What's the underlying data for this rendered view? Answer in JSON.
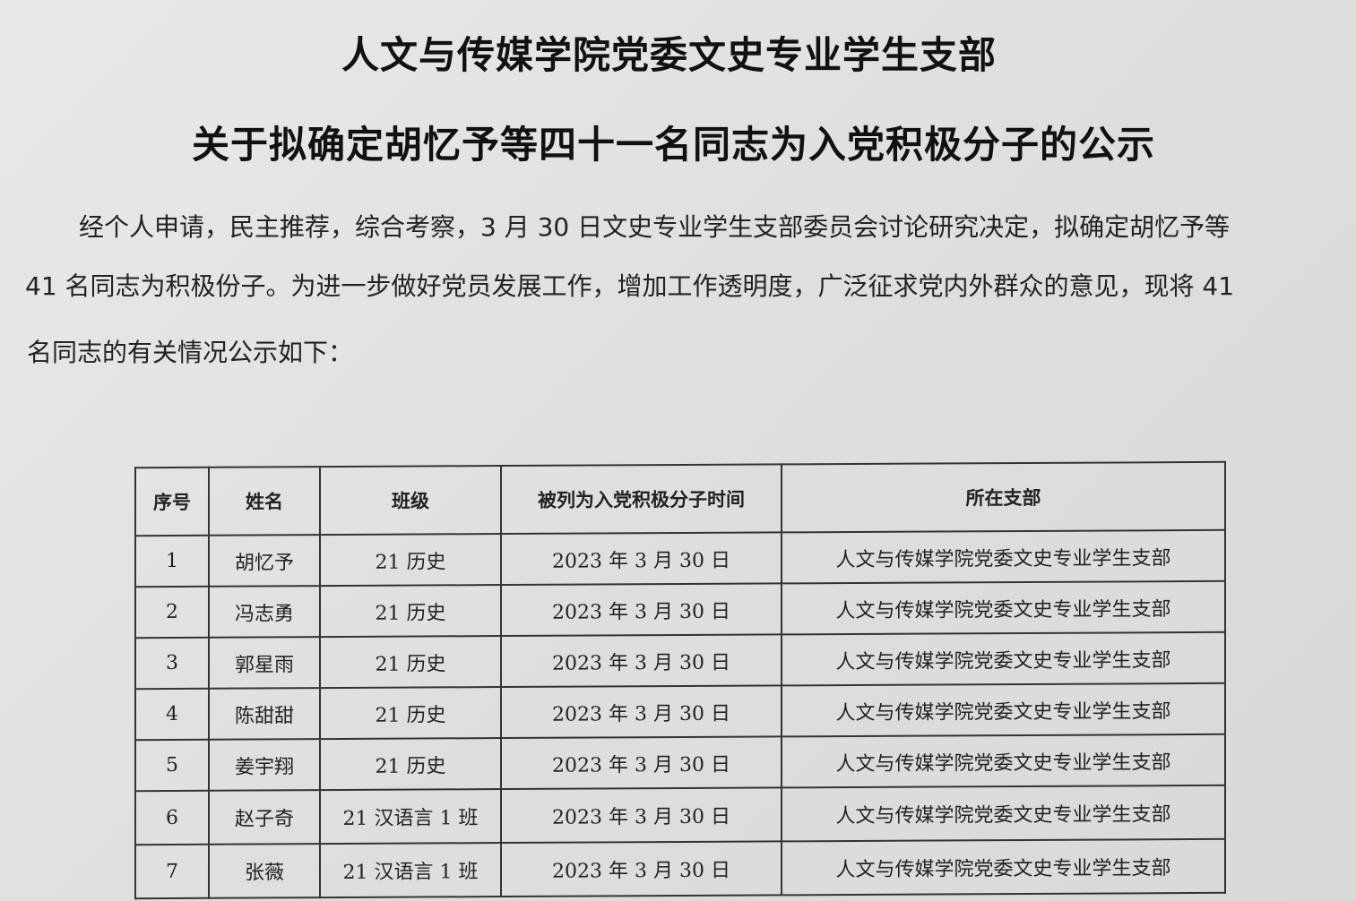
{
  "document": {
    "title_line1": "人文与传媒学院党委文史专业学生支部",
    "title_line2": "关于拟确定胡忆予等四十一名同志为入党积极分子的公示",
    "paragraph_line1": "经个人申请，民主推荐，综合考察，3 月 30 日文史专业学生支部委员会讨论研究决定，拟确定胡忆予等",
    "paragraph_line2": "41 名同志为积极份子。为进一步做好党员发展工作，增加工作透明度，广泛征求党内外群众的意见，现将 41",
    "paragraph_line3": "名同志的有关情况公示如下："
  },
  "table": {
    "headers": [
      "序号",
      "姓名",
      "班级",
      "被列为入党积极分子时间",
      "所在支部"
    ],
    "rows": [
      [
        "1",
        "胡忆予",
        "21 历史",
        "2023 年 3 月 30 日",
        "人文与传媒学院党委文史专业学生支部"
      ],
      [
        "2",
        "冯志勇",
        "21 历史",
        "2023 年 3 月 30 日",
        "人文与传媒学院党委文史专业学生支部"
      ],
      [
        "3",
        "郭星雨",
        "21 历史",
        "2023 年 3 月 30 日",
        "人文与传媒学院党委文史专业学生支部"
      ],
      [
        "4",
        "陈甜甜",
        "21 历史",
        "2023 年 3 月 30 日",
        "人文与传媒学院党委文史专业学生支部"
      ],
      [
        "5",
        "姜宇翔",
        "21 历史",
        "2023 年 3 月 30 日",
        "人文与传媒学院党委文史专业学生支部"
      ],
      [
        "6",
        "赵子奇",
        "21 汉语言 1 班",
        "2023 年 3 月 30 日",
        "人文与传媒学院党委文史专业学生支部"
      ],
      [
        "7",
        "张薇",
        "21 汉语言 1 班",
        "2023 年 3 月 30 日",
        "人文与传媒学院党委文史专业学生支部"
      ]
    ]
  }
}
